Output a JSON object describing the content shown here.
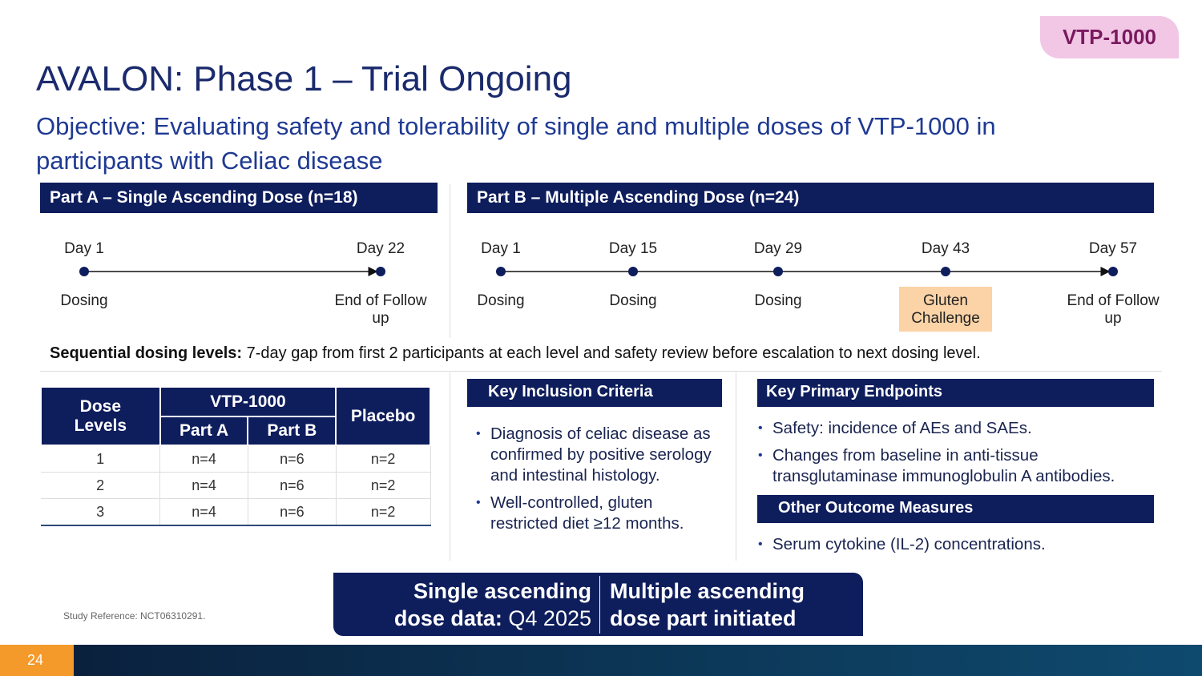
{
  "badge": "VTP-1000",
  "title": "AVALON: Phase 1 – Trial Ongoing",
  "objective": "Objective: Evaluating safety and tolerability of single and multiple doses of VTP-1000 in participants with Celiac disease",
  "part_a": {
    "header": "Part A – Single Ascending Dose (n=18)",
    "timeline": [
      {
        "day": "Day 1",
        "label": "Dosing"
      },
      {
        "day": "Day 22",
        "label": "End of Follow up"
      }
    ]
  },
  "part_b": {
    "header": "Part B – Multiple Ascending Dose (n=24)",
    "timeline": [
      {
        "day": "Day 1",
        "label": "Dosing"
      },
      {
        "day": "Day 15",
        "label": "Dosing"
      },
      {
        "day": "Day 29",
        "label": "Dosing"
      },
      {
        "day": "Day 43",
        "label": "Gluten Challenge",
        "highlight": true
      },
      {
        "day": "Day 57",
        "label": "End of Follow up"
      }
    ]
  },
  "sequential": {
    "lead": "Sequential dosing levels:",
    "text": "7-day gap from first 2 participants at each level and safety review before escalation to next dosing level."
  },
  "table": {
    "header": {
      "dose_levels": "Dose Levels",
      "vtp": "VTP-1000",
      "part_a": "Part A",
      "part_b": "Part B",
      "placebo": "Placebo"
    },
    "rows": [
      [
        "1",
        "n=4",
        "n=6",
        "n=2"
      ],
      [
        "2",
        "n=4",
        "n=6",
        "n=2"
      ],
      [
        "3",
        "n=4",
        "n=6",
        "n=2"
      ]
    ]
  },
  "inclusion": {
    "header": "Key Inclusion Criteria",
    "items": [
      "Diagnosis of celiac disease as confirmed by positive serology and intestinal histology.",
      "Well-controlled, gluten restricted diet ≥12 months."
    ]
  },
  "endpoints": {
    "header": "Key Primary Endpoints",
    "items": [
      "Safety: incidence of AEs and SAEs.",
      "Changes from baseline in anti-tissue transglutaminase immunoglobulin A antibodies."
    ]
  },
  "other": {
    "header": "Other Outcome Measures",
    "items": [
      "Serum cytokine (IL-2) concentrations."
    ]
  },
  "banner": {
    "left_bold": "Single ascending dose data:",
    "left_text": "Q4 2025",
    "right": "Multiple ascending dose part initiated"
  },
  "reference": "Study Reference: NCT06310291.",
  "page_number": 24
}
